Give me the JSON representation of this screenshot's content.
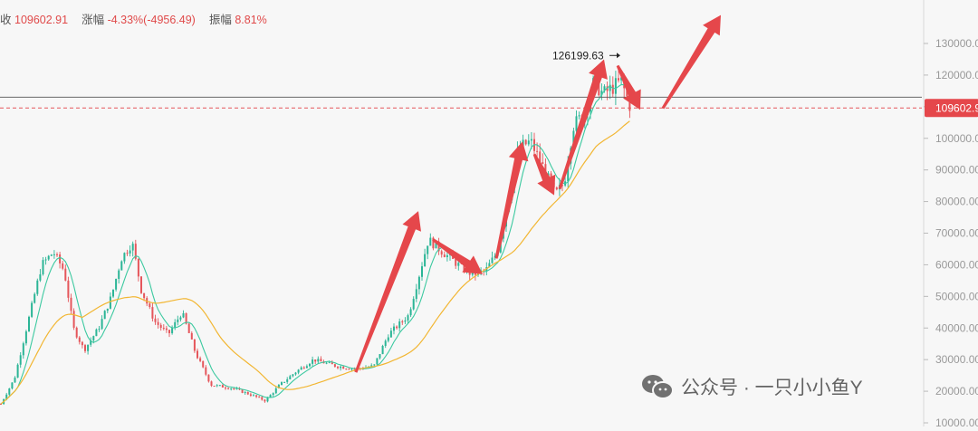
{
  "header": {
    "close_label": "收",
    "close_value": "109602.91",
    "change_label": "涨幅",
    "change_value": "-4.33%(-4956.49)",
    "amplitude_label": "振幅",
    "amplitude_value": "8.81%"
  },
  "watermark": {
    "icon": "wechat-icon",
    "text": "公众号 · 一只小小鱼Y"
  },
  "colors": {
    "up": "#2bb596",
    "down": "#e5565b",
    "ma_fast": "#3cc9a0",
    "ma_slow": "#f2b632",
    "arrow": "#e5474b",
    "price_line": "#555555",
    "price_tag_bg": "#e5474b"
  },
  "chart_data": {
    "type": "candlestick",
    "y_axis": {
      "position": "right",
      "range": [
        10000,
        140000
      ],
      "ticks": [
        10000,
        20000,
        30000,
        40000,
        50000,
        60000,
        70000,
        80000,
        90000,
        100000,
        110000,
        120000,
        130000
      ],
      "tick_labels": [
        "10000.00",
        "20000.00",
        "30000.00",
        "40000.00",
        "50000.00",
        "60000.00",
        "70000.00",
        "80000.00",
        "90000.00",
        "100000.00",
        "110000.00",
        "120000.00",
        "130000.00"
      ]
    },
    "grid": false,
    "current_price": 109602.91,
    "current_price_tag": "109602.9",
    "high_annotation": {
      "value": 126199.63,
      "label": "126199.63"
    },
    "price_path": [
      [
        0,
        16000
      ],
      [
        15,
        24000
      ],
      [
        30,
        42000
      ],
      [
        45,
        60000
      ],
      [
        58,
        64000
      ],
      [
        70,
        58000
      ],
      [
        80,
        40000
      ],
      [
        92,
        33000
      ],
      [
        108,
        40000
      ],
      [
        122,
        50000
      ],
      [
        133,
        62000
      ],
      [
        145,
        67000
      ],
      [
        155,
        52000
      ],
      [
        170,
        42000
      ],
      [
        185,
        38000
      ],
      [
        200,
        45000
      ],
      [
        215,
        32000
      ],
      [
        232,
        22000
      ],
      [
        255,
        21000
      ],
      [
        275,
        19000
      ],
      [
        292,
        17000
      ],
      [
        308,
        22000
      ],
      [
        325,
        26000
      ],
      [
        345,
        30000
      ],
      [
        370,
        28000
      ],
      [
        392,
        27000
      ],
      [
        412,
        28000
      ],
      [
        428,
        38000
      ],
      [
        450,
        44000
      ],
      [
        463,
        58000
      ],
      [
        472,
        68000
      ],
      [
        488,
        64000
      ],
      [
        505,
        60000
      ],
      [
        520,
        57000
      ],
      [
        535,
        58000
      ],
      [
        548,
        64000
      ],
      [
        560,
        80000
      ],
      [
        572,
        97000
      ],
      [
        585,
        99000
      ],
      [
        600,
        90000
      ],
      [
        612,
        82000
      ],
      [
        622,
        86000
      ],
      [
        632,
        104000
      ],
      [
        645,
        108000
      ],
      [
        655,
        118000
      ],
      [
        665,
        114000
      ],
      [
        675,
        116000
      ],
      [
        685,
        118000
      ],
      [
        695,
        110000
      ]
    ],
    "arrows": [
      {
        "from": [
          393,
          26000
        ],
        "to": [
          462,
          77000
        ]
      },
      {
        "from": [
          478,
          68000
        ],
        "to": [
          533,
          57000
        ]
      },
      {
        "from": [
          548,
          62000
        ],
        "to": [
          577,
          99000
        ]
      },
      {
        "from": [
          590,
          95000
        ],
        "to": [
          612,
          82000
        ]
      },
      {
        "from": [
          618,
          84000
        ],
        "to": [
          667,
          125000
        ]
      },
      {
        "from": [
          682,
          123000
        ],
        "to": [
          707,
          109000
        ]
      },
      {
        "from": [
          732,
          109500
        ],
        "to": [
          796,
          139000
        ]
      }
    ]
  }
}
